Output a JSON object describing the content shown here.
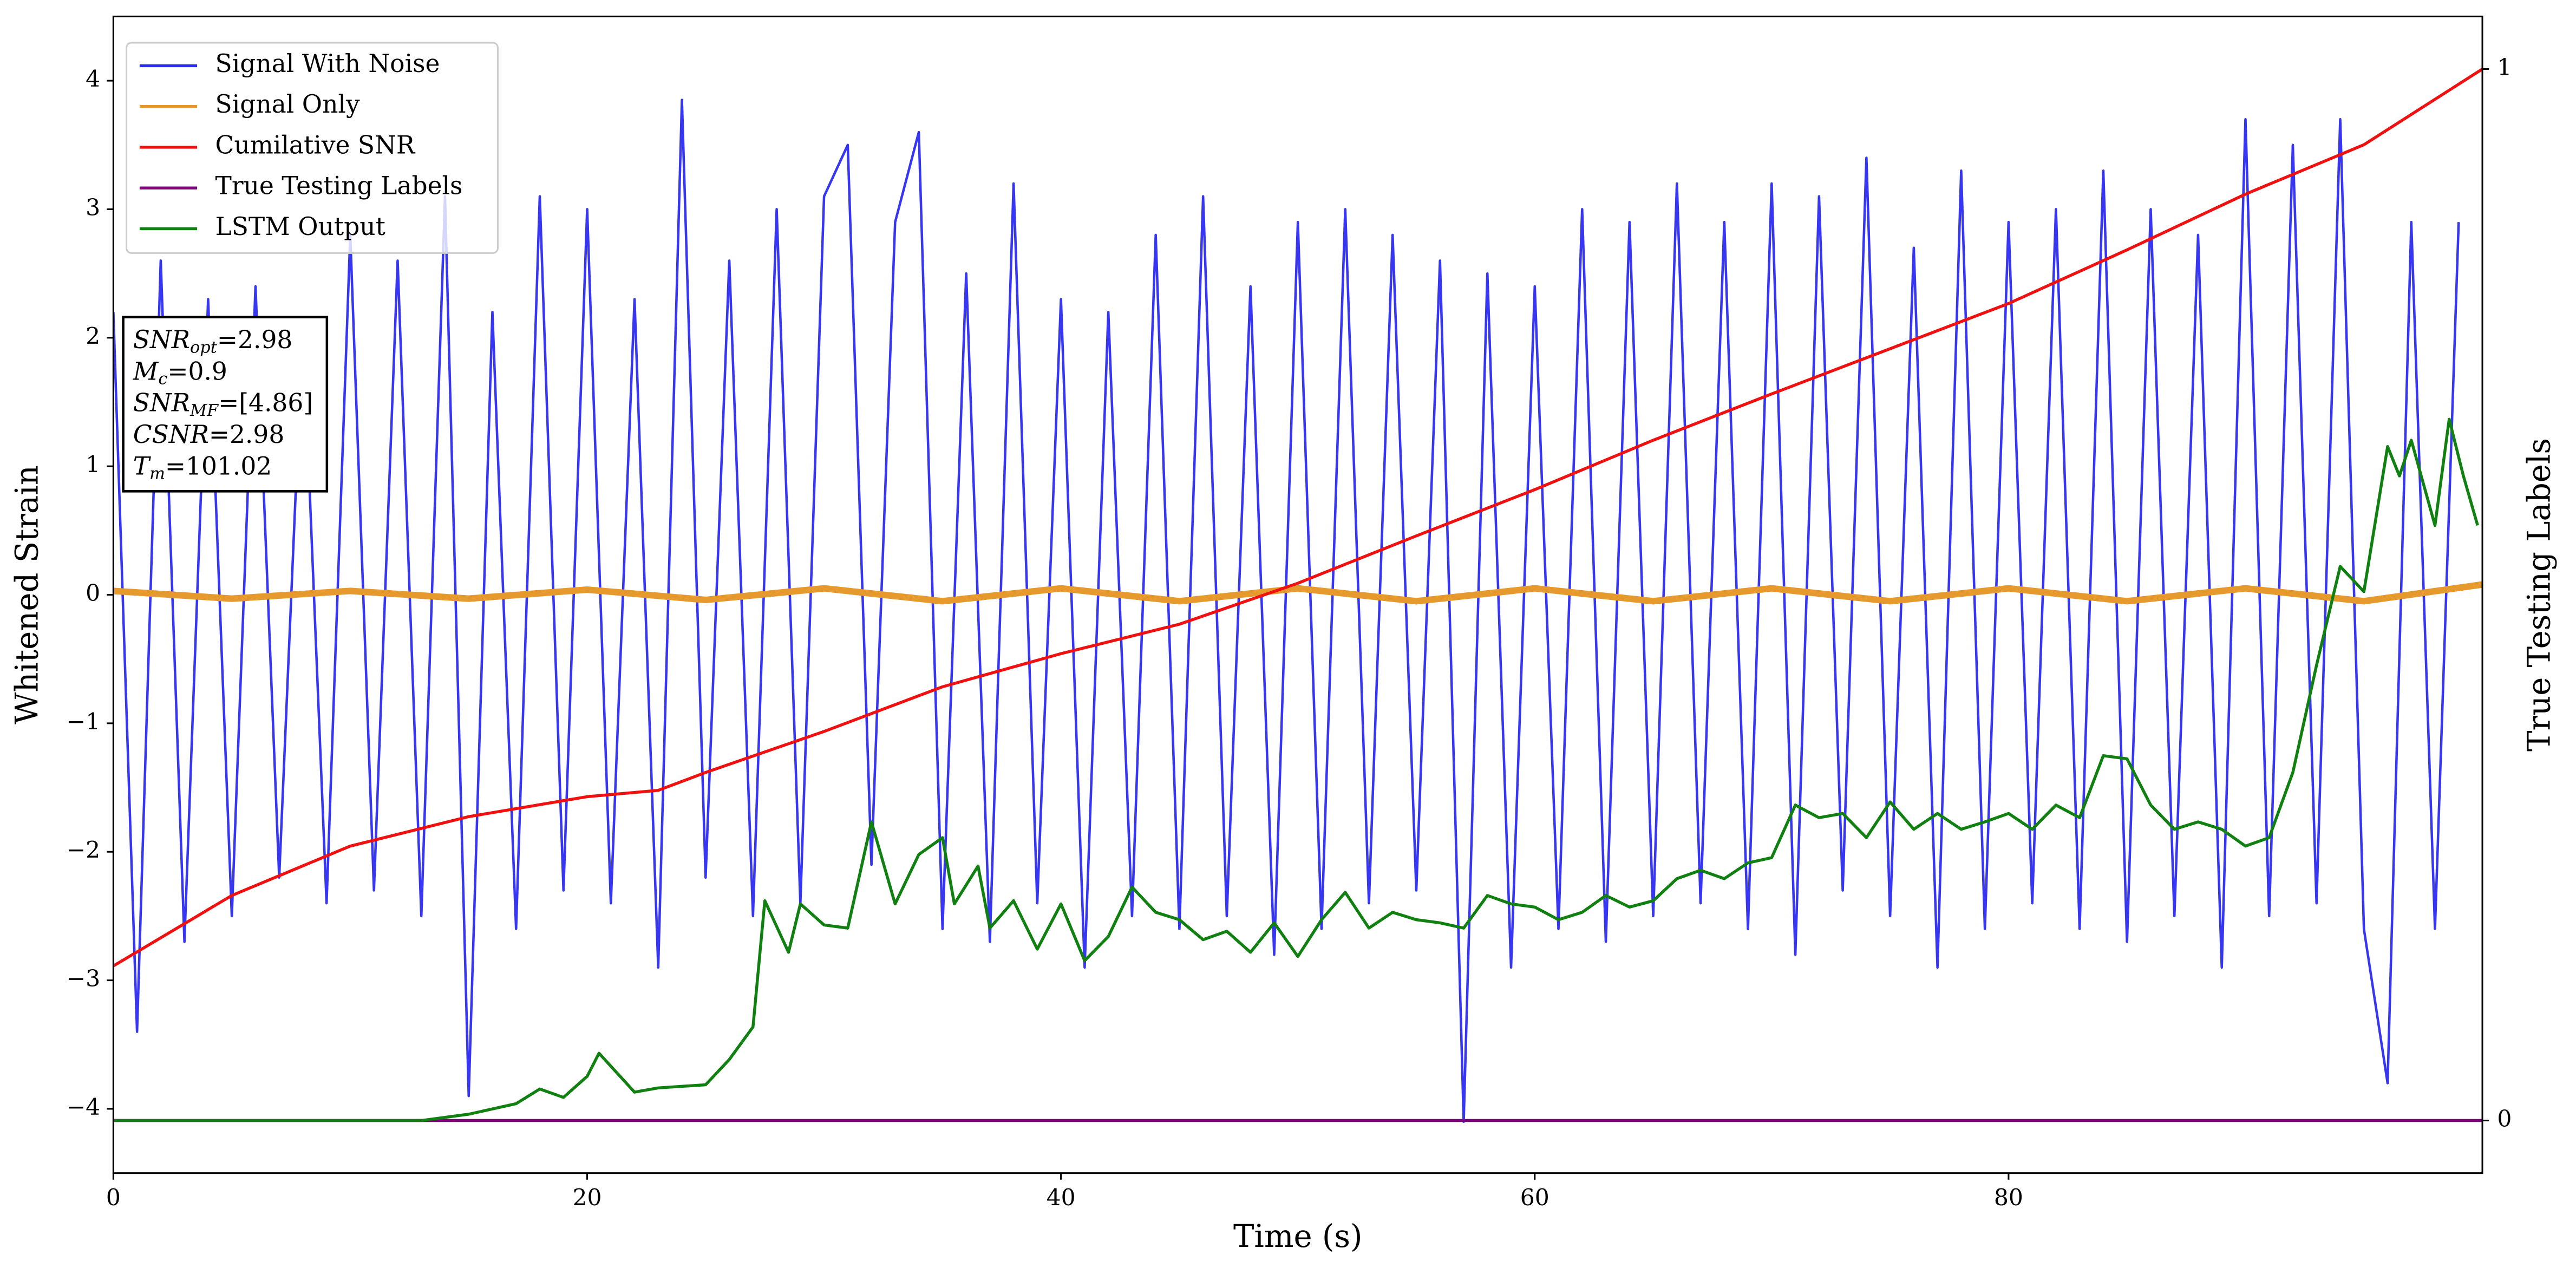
{
  "chart_data": {
    "type": "line",
    "xlabel": "Time (s)",
    "ylabel": "Whitened Strain",
    "y2label": "True Testing Labels",
    "xlim": [
      0,
      100
    ],
    "ylim": [
      -4.5,
      4.5
    ],
    "y2lim": [
      -0.05,
      1.05
    ],
    "xticks": [
      0,
      20,
      40,
      60,
      80
    ],
    "yticks": [
      {
        "value": -4,
        "label": "−4"
      },
      {
        "value": -3,
        "label": "−3"
      },
      {
        "value": -2,
        "label": "−2"
      },
      {
        "value": -1,
        "label": "−1"
      },
      0,
      1,
      2,
      3,
      4
    ],
    "y2ticks": [
      0,
      1
    ],
    "legend": "upper left",
    "series": [
      {
        "name": "Signal With Noise",
        "color": "#2b2bf2",
        "x": [
          0,
          1,
          2,
          3,
          4,
          5,
          6,
          7,
          8,
          9,
          10,
          11,
          12,
          13,
          14,
          15,
          16,
          17,
          18,
          19,
          20,
          21,
          22,
          23,
          24,
          25,
          26,
          27,
          28,
          29,
          30,
          31,
          32,
          33,
          34,
          35,
          36,
          37,
          38,
          39,
          40,
          41,
          42,
          43,
          44,
          45,
          46,
          47,
          48,
          49,
          50,
          51,
          52,
          53,
          54,
          55,
          56,
          57,
          58,
          59,
          60,
          61,
          62,
          63,
          64,
          65,
          66,
          67,
          68,
          69,
          70,
          71,
          72,
          73,
          74,
          75,
          76,
          77,
          78,
          79,
          80,
          81,
          82,
          83,
          84,
          85,
          86,
          87,
          88,
          89,
          90,
          91,
          92,
          93,
          94,
          95,
          96,
          97,
          98,
          99
        ],
        "values": [
          2.2,
          -3.4,
          2.6,
          -2.7,
          2.3,
          -2.5,
          2.4,
          -2.2,
          2.1,
          -2.4,
          2.8,
          -2.3,
          2.6,
          -2.5,
          3.1,
          -3.9,
          2.2,
          -2.6,
          3.1,
          -2.3,
          3.0,
          -2.4,
          2.3,
          -2.9,
          3.85,
          -2.2,
          2.6,
          -2.5,
          3.0,
          -2.4,
          3.1,
          3.5,
          -2.1,
          2.9,
          3.6,
          -2.6,
          2.5,
          -2.7,
          3.2,
          -2.4,
          2.3,
          -2.9,
          2.2,
          -2.5,
          2.8,
          -2.6,
          3.1,
          -2.5,
          2.4,
          -2.8,
          2.9,
          -2.6,
          3.0,
          -2.4,
          2.8,
          -2.3,
          2.6,
          -4.1,
          2.5,
          -2.9,
          2.4,
          -2.6,
          3.0,
          -2.7,
          2.9,
          -2.5,
          3.2,
          -2.4,
          2.9,
          -2.6,
          3.2,
          -2.8,
          3.1,
          -2.3,
          3.4,
          -2.5,
          2.7,
          -2.9,
          3.3,
          -2.6,
          2.9,
          -2.4,
          3.0,
          -2.6,
          3.3,
          -2.7,
          3.0,
          -2.5,
          2.8,
          -2.9,
          3.7,
          -2.5,
          3.5,
          -2.4,
          3.7,
          -2.6,
          -3.8,
          2.9,
          -2.6,
          2.9
        ]
      },
      {
        "name": "Signal Only",
        "color": "#e69a2e",
        "x": [
          0,
          5,
          10,
          15,
          20,
          25,
          30,
          35,
          40,
          45,
          50,
          55,
          60,
          65,
          70,
          75,
          80,
          85,
          90,
          95,
          100
        ],
        "values": [
          0.03,
          -0.03,
          0.03,
          -0.03,
          0.04,
          -0.04,
          0.05,
          -0.05,
          0.05,
          -0.05,
          0.05,
          -0.05,
          0.05,
          -0.05,
          0.05,
          -0.05,
          0.05,
          -0.05,
          0.05,
          -0.05,
          0.08
        ]
      },
      {
        "name": "Cumilative SNR",
        "color": "#f01010",
        "axis": "y2",
        "x": [
          0,
          5,
          10,
          15,
          20,
          23,
          25,
          30,
          35,
          40,
          45,
          50,
          55,
          60,
          65,
          70,
          75,
          80,
          85,
          90,
          95,
          100
        ],
        "values": [
          0.147,
          0.214,
          0.261,
          0.289,
          0.308,
          0.314,
          0.331,
          0.37,
          0.4125,
          0.444,
          0.472,
          0.511,
          0.556,
          0.6,
          0.647,
          0.691,
          0.734,
          0.777,
          0.828,
          0.881,
          0.928,
          1.0
        ]
      },
      {
        "name": "True Testing Labels",
        "color": "#800080",
        "axis": "y2",
        "x": [
          0,
          100
        ],
        "values": [
          0,
          0
        ]
      },
      {
        "name": "LSTM Output",
        "color": "#108010",
        "axis": "y2",
        "x": [
          0,
          13,
          15,
          17,
          18,
          19,
          20,
          20.5,
          22,
          23,
          25,
          26,
          27,
          27.5,
          28.5,
          29,
          30,
          31,
          32,
          33,
          34,
          35,
          35.5,
          36.5,
          37,
          38,
          39,
          40,
          41,
          42,
          43,
          44,
          45,
          46,
          47,
          48,
          49,
          50,
          51,
          52,
          53,
          54,
          55,
          56,
          57,
          58,
          59,
          60,
          61,
          62,
          63,
          64,
          65,
          66,
          67,
          68,
          69,
          70,
          71,
          72,
          73,
          74,
          75,
          76,
          77,
          78,
          79,
          80,
          81,
          82,
          83,
          84,
          85,
          86,
          87,
          88,
          89,
          90,
          91,
          92,
          93,
          94,
          95,
          96,
          96.5,
          97,
          98,
          98.6,
          99.2,
          99.8
        ],
        "values": [
          0,
          0,
          0.006,
          0.016,
          0.03,
          0.022,
          0.042,
          0.064,
          0.027,
          0.031,
          0.034,
          0.058,
          0.089,
          0.209,
          0.16,
          0.206,
          0.186,
          0.183,
          0.284,
          0.206,
          0.253,
          0.269,
          0.206,
          0.242,
          0.183,
          0.209,
          0.163,
          0.206,
          0.152,
          0.175,
          0.222,
          0.198,
          0.191,
          0.172,
          0.18,
          0.16,
          0.188,
          0.156,
          0.191,
          0.217,
          0.183,
          0.198,
          0.191,
          0.188,
          0.183,
          0.214,
          0.206,
          0.203,
          0.191,
          0.198,
          0.214,
          0.203,
          0.209,
          0.23,
          0.238,
          0.23,
          0.245,
          0.25,
          0.3,
          0.288,
          0.292,
          0.269,
          0.303,
          0.277,
          0.292,
          0.277,
          0.284,
          0.292,
          0.277,
          0.3,
          0.288,
          0.347,
          0.344,
          0.3,
          0.277,
          0.284,
          0.277,
          0.261,
          0.269,
          0.331,
          0.433,
          0.527,
          0.503,
          0.641,
          0.613,
          0.647,
          0.566,
          0.667,
          0.613,
          0.566
        ]
      }
    ],
    "annotation": [
      {
        "text": "SNR",
        "sub": "opt",
        "value": "=2.98"
      },
      {
        "text": "M",
        "sub": "c",
        "value": "=0.9"
      },
      {
        "text": "SNR",
        "sub": "MF",
        "value": "=[4.86]"
      },
      {
        "text": "CSNR",
        "value": "=2.98"
      },
      {
        "text": "T",
        "sub": "m",
        "value": "=101.02"
      }
    ]
  }
}
